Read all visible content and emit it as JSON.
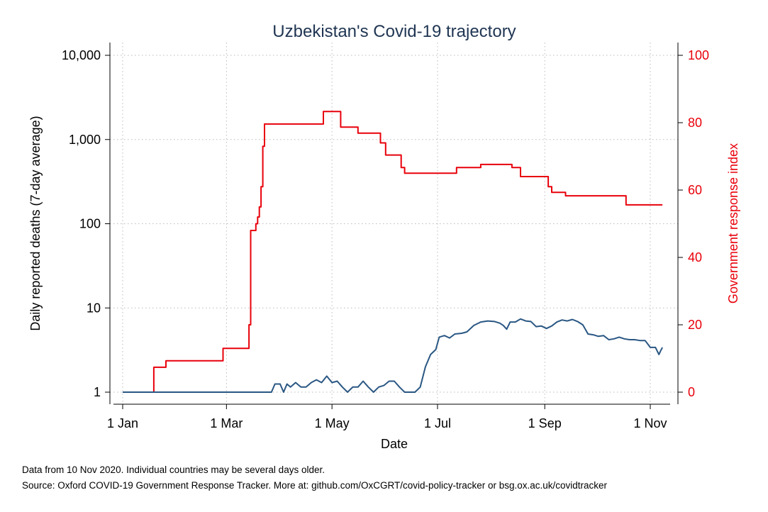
{
  "chart_data": {
    "type": "line",
    "title": "Uzbekistan's Covid-19 trajectory",
    "xlabel": "Date",
    "ylabel": "Daily reported deaths (7-day average)",
    "y2label": "Government response index",
    "x_ticks": [
      "1 Jan",
      "1 Mar",
      "1 May",
      "1 Jul",
      "1 Sep",
      "1 Nov"
    ],
    "x_tick_dates": [
      "2020-01-01",
      "2020-03-01",
      "2020-05-01",
      "2020-07-01",
      "2020-09-01",
      "2020-11-01"
    ],
    "y_scale": "log",
    "y_ticks": [
      "1",
      "10",
      "100",
      "1,000",
      "10,000"
    ],
    "y_tick_values": [
      1,
      10,
      100,
      1000,
      10000
    ],
    "y2_ticks": [
      "0",
      "20",
      "40",
      "60",
      "80",
      "100"
    ],
    "y2_tick_values": [
      0,
      20,
      40,
      60,
      80,
      100
    ],
    "xlim": [
      "2020-01-01",
      "2020-11-10"
    ],
    "ylim": [
      1,
      10000
    ],
    "y2lim": [
      0,
      100
    ],
    "grid": true,
    "series": [
      {
        "name": "",
        "axis": "right",
        "color": "#e8000b",
        "step": true,
        "points": [
          [
            "2020-01-01",
            0
          ],
          [
            "2020-01-19",
            0
          ],
          [
            "2020-01-19",
            7.4
          ],
          [
            "2020-01-26",
            7.4
          ],
          [
            "2020-01-26",
            9.3
          ],
          [
            "2020-02-28",
            9.3
          ],
          [
            "2020-02-28",
            13
          ],
          [
            "2020-03-14",
            13
          ],
          [
            "2020-03-14",
            20
          ],
          [
            "2020-03-15",
            20
          ],
          [
            "2020-03-15",
            48
          ],
          [
            "2020-03-18",
            48
          ],
          [
            "2020-03-18",
            50
          ],
          [
            "2020-03-19",
            50
          ],
          [
            "2020-03-19",
            52
          ],
          [
            "2020-03-20",
            52
          ],
          [
            "2020-03-20",
            55
          ],
          [
            "2020-03-21",
            55
          ],
          [
            "2020-03-21",
            61
          ],
          [
            "2020-03-22",
            61
          ],
          [
            "2020-03-22",
            73
          ],
          [
            "2020-03-23",
            73
          ],
          [
            "2020-03-23",
            79.6
          ],
          [
            "2020-04-26",
            79.6
          ],
          [
            "2020-04-26",
            83.3
          ],
          [
            "2020-05-06",
            83.3
          ],
          [
            "2020-05-06",
            78.7
          ],
          [
            "2020-05-16",
            78.7
          ],
          [
            "2020-05-16",
            76.9
          ],
          [
            "2020-05-29",
            76.9
          ],
          [
            "2020-05-29",
            74
          ],
          [
            "2020-06-01",
            74
          ],
          [
            "2020-06-01",
            70.4
          ],
          [
            "2020-06-10",
            70.4
          ],
          [
            "2020-06-10",
            66.7
          ],
          [
            "2020-06-12",
            66.7
          ],
          [
            "2020-06-12",
            65
          ],
          [
            "2020-07-12",
            65
          ],
          [
            "2020-07-12",
            66.7
          ],
          [
            "2020-07-26",
            66.7
          ],
          [
            "2020-07-26",
            67.6
          ],
          [
            "2020-08-13",
            67.6
          ],
          [
            "2020-08-13",
            66.7
          ],
          [
            "2020-08-18",
            66.7
          ],
          [
            "2020-08-18",
            64
          ],
          [
            "2020-09-03",
            64
          ],
          [
            "2020-09-03",
            61
          ],
          [
            "2020-09-05",
            61
          ],
          [
            "2020-09-05",
            59.3
          ],
          [
            "2020-09-13",
            59.3
          ],
          [
            "2020-09-13",
            58.3
          ],
          [
            "2020-10-18",
            58.3
          ],
          [
            "2020-10-18",
            55.6
          ],
          [
            "2020-11-08",
            55.6
          ]
        ]
      },
      {
        "name": "",
        "axis": "left",
        "color": "#2a5783",
        "step": false,
        "points": [
          [
            "2020-01-01",
            1
          ],
          [
            "2020-03-27",
            1
          ],
          [
            "2020-03-29",
            1.25
          ],
          [
            "2020-04-01",
            1.25
          ],
          [
            "2020-04-03",
            1
          ],
          [
            "2020-04-05",
            1.25
          ],
          [
            "2020-04-07",
            1.15
          ],
          [
            "2020-04-10",
            1.3
          ],
          [
            "2020-04-13",
            1.15
          ],
          [
            "2020-04-16",
            1.15
          ],
          [
            "2020-04-19",
            1.3
          ],
          [
            "2020-04-22",
            1.4
          ],
          [
            "2020-04-25",
            1.3
          ],
          [
            "2020-04-28",
            1.55
          ],
          [
            "2020-05-01",
            1.3
          ],
          [
            "2020-05-04",
            1.35
          ],
          [
            "2020-05-07",
            1.15
          ],
          [
            "2020-05-10",
            1
          ],
          [
            "2020-05-13",
            1.15
          ],
          [
            "2020-05-16",
            1.15
          ],
          [
            "2020-05-19",
            1.35
          ],
          [
            "2020-05-22",
            1.15
          ],
          [
            "2020-05-25",
            1
          ],
          [
            "2020-05-28",
            1.15
          ],
          [
            "2020-05-31",
            1.2
          ],
          [
            "2020-06-03",
            1.35
          ],
          [
            "2020-06-06",
            1.35
          ],
          [
            "2020-06-09",
            1.15
          ],
          [
            "2020-06-12",
            1
          ],
          [
            "2020-06-18",
            1
          ],
          [
            "2020-06-21",
            1.15
          ],
          [
            "2020-06-24",
            2
          ],
          [
            "2020-06-27",
            2.8
          ],
          [
            "2020-06-30",
            3.2
          ],
          [
            "2020-07-02",
            4.5
          ],
          [
            "2020-07-05",
            4.7
          ],
          [
            "2020-07-08",
            4.4
          ],
          [
            "2020-07-11",
            4.9
          ],
          [
            "2020-07-15",
            5
          ],
          [
            "2020-07-18",
            5.2
          ],
          [
            "2020-07-22",
            6.2
          ],
          [
            "2020-07-26",
            6.8
          ],
          [
            "2020-07-30",
            7
          ],
          [
            "2020-08-03",
            6.9
          ],
          [
            "2020-08-06",
            6.6
          ],
          [
            "2020-08-08",
            6.2
          ],
          [
            "2020-08-10",
            5.6
          ],
          [
            "2020-08-12",
            6.8
          ],
          [
            "2020-08-15",
            6.8
          ],
          [
            "2020-08-18",
            7.4
          ],
          [
            "2020-08-21",
            7
          ],
          [
            "2020-08-24",
            6.9
          ],
          [
            "2020-08-27",
            6
          ],
          [
            "2020-08-30",
            6.1
          ],
          [
            "2020-09-02",
            5.7
          ],
          [
            "2020-09-05",
            6.1
          ],
          [
            "2020-09-08",
            6.8
          ],
          [
            "2020-09-11",
            7.2
          ],
          [
            "2020-09-14",
            7
          ],
          [
            "2020-09-17",
            7.3
          ],
          [
            "2020-09-20",
            6.9
          ],
          [
            "2020-09-23",
            6.3
          ],
          [
            "2020-09-26",
            4.9
          ],
          [
            "2020-09-29",
            4.8
          ],
          [
            "2020-10-02",
            4.6
          ],
          [
            "2020-10-05",
            4.7
          ],
          [
            "2020-10-08",
            4.2
          ],
          [
            "2020-10-11",
            4.3
          ],
          [
            "2020-10-14",
            4.5
          ],
          [
            "2020-10-17",
            4.3
          ],
          [
            "2020-10-20",
            4.2
          ],
          [
            "2020-10-23",
            4.2
          ],
          [
            "2020-10-26",
            4.1
          ],
          [
            "2020-10-29",
            4.1
          ],
          [
            "2020-11-01",
            3.4
          ],
          [
            "2020-11-04",
            3.4
          ],
          [
            "2020-11-06",
            2.8
          ],
          [
            "2020-11-07",
            3.1
          ],
          [
            "2020-11-08",
            3.4
          ]
        ]
      }
    ]
  },
  "notes": {
    "line1": "Data from 10 Nov 2020. Individual countries may be several days older.",
    "line2": "Source: Oxford COVID-19 Government Response Tracker. More at: github.com/OxCGRT/covid-policy-tracker or bsg.ox.ac.uk/covidtracker"
  },
  "colors": {
    "title": "#1f3552",
    "deaths_line": "#2a5783",
    "response_line": "#e8000b",
    "grid": "#bbbbbb"
  }
}
